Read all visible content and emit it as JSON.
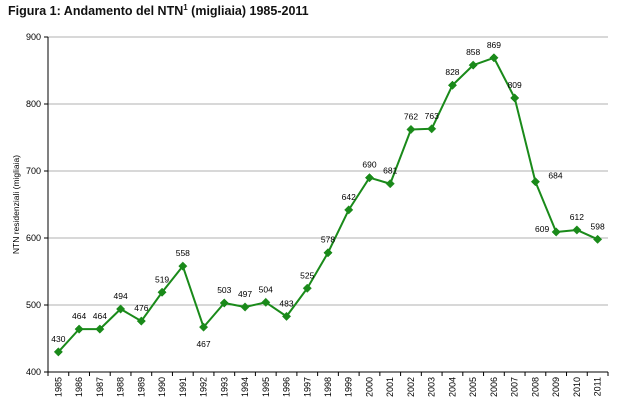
{
  "figure": {
    "title_prefix": "Figura 1: Andamento del NTN",
    "title_superscript": "1",
    "title_suffix": " (migliaia) 1985-2011"
  },
  "chart_data": {
    "type": "line",
    "title": "Figura 1: Andamento del NTN¹ (migliaia) 1985-2011",
    "xlabel": "",
    "ylabel": "NTN residenziali (migliaia)",
    "x": [
      "1985",
      "1986",
      "1987",
      "1988",
      "1989",
      "1990",
      "1991",
      "1992",
      "1993",
      "1994",
      "1995",
      "1996",
      "1997",
      "1998",
      "1999",
      "2000",
      "2001",
      "2002",
      "2003",
      "2004",
      "2005",
      "2006",
      "2007",
      "2008",
      "2009",
      "2010",
      "2011"
    ],
    "series": [
      {
        "values": [
          430,
          464,
          464,
          494,
          476,
          519,
          558,
          467,
          503,
          497,
          504,
          483,
          525,
          578,
          642,
          690,
          681,
          762,
          763,
          828,
          858,
          869,
          809,
          684,
          609,
          612,
          598
        ],
        "labels": [
          "430",
          "464",
          "464",
          "494",
          "476",
          "519",
          "558",
          "467",
          "503",
          "497",
          "504",
          "483",
          "525",
          "578",
          "642",
          "690",
          "681",
          "762",
          "763",
          "828",
          "858",
          "869",
          "809",
          "684",
          "609",
          "612",
          "598"
        ],
        "color": "#1a8a1a",
        "marker": "diamond"
      }
    ],
    "ylim": [
      400,
      900
    ],
    "yticks": [
      400,
      500,
      600,
      700,
      800,
      900
    ],
    "ytick_labels": [
      "400",
      "500",
      "600",
      "700",
      "800",
      "900"
    ],
    "grid": "horizontal",
    "gridline_color": "#999999",
    "legend": "none"
  }
}
